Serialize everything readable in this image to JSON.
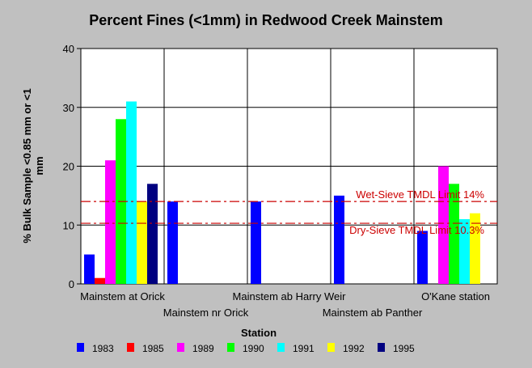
{
  "chart_data": {
    "type": "bar",
    "title": "Percent Fines (<1mm) in Redwood Creek Mainstem",
    "xlabel": "Station",
    "ylabel": "% Bulk Sample <0.85 mm or <1 mm",
    "ylim": [
      0,
      40
    ],
    "yticks": [
      0,
      10,
      20,
      30,
      40
    ],
    "grid": true,
    "legend_position": "bottom",
    "categories": [
      "Mainstem at Orick",
      "Mainstem nr Orick",
      "Mainstem ab Harry Weir",
      "Mainstem ab Panther",
      "O'Kane station"
    ],
    "series": [
      {
        "name": "1983",
        "color": "#0000ff",
        "values": [
          5,
          14,
          14,
          15,
          9
        ]
      },
      {
        "name": "1985",
        "color": "#ff0000",
        "values": [
          1,
          null,
          null,
          null,
          null
        ]
      },
      {
        "name": "1989",
        "color": "#ff00ff",
        "values": [
          21,
          null,
          null,
          null,
          20
        ]
      },
      {
        "name": "1990",
        "color": "#00ff00",
        "values": [
          28,
          null,
          null,
          null,
          17
        ]
      },
      {
        "name": "1991",
        "color": "#00ffff",
        "values": [
          31,
          null,
          null,
          null,
          11
        ]
      },
      {
        "name": "1992",
        "color": "#ffff00",
        "values": [
          14,
          null,
          null,
          null,
          12
        ]
      },
      {
        "name": "1995",
        "color": "#000080",
        "values": [
          17,
          null,
          null,
          null,
          null
        ]
      }
    ],
    "reference_lines": [
      {
        "label": "Wet-Sieve TMDL Limit 14%",
        "value": 14,
        "color": "#cc0000"
      },
      {
        "label": "Dry-Sieve TMDL Limit 10.3%",
        "value": 10.3,
        "color": "#cc0000"
      }
    ]
  }
}
